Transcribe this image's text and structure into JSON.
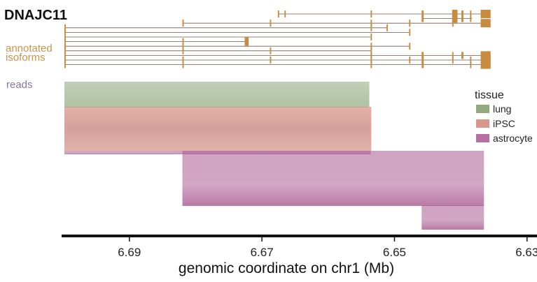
{
  "gene": {
    "name": "DNAJC11"
  },
  "labels": {
    "annotated_line1": "annotated",
    "annotated_line2": "isoforms",
    "reads": "reads"
  },
  "legend": {
    "title": "tissue",
    "items": [
      {
        "label": "lung",
        "color": "#7f9a68"
      },
      {
        "label": "iPSC",
        "color": "#d08578"
      },
      {
        "label": "astrocyte",
        "color": "#a8588f"
      }
    ]
  },
  "colors": {
    "isoform": "#c98b3f",
    "annotated_label": "#c9954e",
    "reads_label": "#8673a8",
    "axis": "#111111"
  },
  "chart_data": {
    "type": "genome-track",
    "title": "DNAJC11",
    "xlabel": "genomic coordinate on chr1 (Mb)",
    "x_reversed": true,
    "xlim": [
      6.6998,
      6.6285
    ],
    "x_ticks": [
      6.69,
      6.67,
      6.65,
      6.63
    ],
    "x_tick_labels": [
      "6.69",
      "6.67",
      "6.65",
      "6.63"
    ],
    "isoforms": [
      {
        "start": 6.6676,
        "end": 6.6355,
        "exons": [
          [
            6.6676,
            6.6674
          ],
          [
            6.6666,
            6.6664
          ],
          [
            6.6536,
            6.6534
          ],
          [
            6.6459,
            6.6456
          ],
          [
            6.6413,
            6.6405
          ],
          [
            6.6399,
            6.6396
          ],
          [
            6.6386,
            6.6384
          ],
          [
            6.637,
            6.6355
          ]
        ]
      },
      {
        "start": 6.6459,
        "end": 6.6383,
        "exons": [
          [
            6.6459,
            6.6456
          ],
          [
            6.6413,
            6.6405
          ],
          [
            6.6399,
            6.6396
          ],
          [
            6.6386,
            6.6384
          ]
        ]
      },
      {
        "start": 6.682,
        "end": 6.6355,
        "exons": [
          [
            6.682,
            6.6818
          ],
          [
            6.6688,
            6.6686
          ],
          [
            6.6536,
            6.6534
          ],
          [
            6.6478,
            6.6476
          ],
          [
            6.6413,
            6.6411
          ],
          [
            6.637,
            6.6355
          ]
        ]
      },
      {
        "start": 6.6998,
        "end": 6.6512,
        "exons": [
          [
            6.6998,
            6.6996
          ],
          [
            6.6536,
            6.6534
          ],
          [
            6.6512,
            6.651
          ]
        ]
      },
      {
        "start": 6.6998,
        "end": 6.6478,
        "exons": [
          [
            6.6998,
            6.6996
          ],
          [
            6.6478,
            6.6476
          ]
        ]
      },
      {
        "start": 6.6998,
        "end": 6.6536,
        "exons": [
          [
            6.6998,
            6.6996
          ],
          [
            6.6536,
            6.6534
          ]
        ]
      },
      {
        "start": 6.6998,
        "end": 6.672,
        "exons": [
          [
            6.6998,
            6.6996
          ],
          [
            6.682,
            6.6818
          ],
          [
            6.6726,
            6.672
          ]
        ]
      },
      {
        "start": 6.6998,
        "end": 6.6478,
        "exons": [
          [
            6.6998,
            6.6996
          ],
          [
            6.682,
            6.6818
          ],
          [
            6.6536,
            6.6534
          ],
          [
            6.6478,
            6.6476
          ]
        ]
      },
      {
        "start": 6.6998,
        "end": 6.6536,
        "exons": [
          [
            6.6998,
            6.6996
          ],
          [
            6.682,
            6.6818
          ],
          [
            6.6688,
            6.6686
          ],
          [
            6.6536,
            6.6534
          ]
        ]
      },
      {
        "start": 6.6998,
        "end": 6.6355,
        "exons": [
          [
            6.6998,
            6.6996
          ],
          [
            6.6536,
            6.6534
          ],
          [
            6.6459,
            6.6456
          ],
          [
            6.6413,
            6.6411
          ],
          [
            6.6399,
            6.6396
          ],
          [
            6.637,
            6.6355
          ]
        ]
      },
      {
        "start": 6.6998,
        "end": 6.6355,
        "exons": [
          [
            6.6998,
            6.6996
          ],
          [
            6.682,
            6.6818
          ],
          [
            6.6688,
            6.6686
          ],
          [
            6.6536,
            6.6534
          ],
          [
            6.6478,
            6.6476
          ],
          [
            6.6459,
            6.6456
          ],
          [
            6.6413,
            6.6411
          ],
          [
            6.6386,
            6.6384
          ],
          [
            6.637,
            6.6355
          ]
        ]
      },
      {
        "start": 6.6998,
        "end": 6.6355,
        "exons": [
          [
            6.6998,
            6.6996
          ],
          [
            6.682,
            6.6818
          ],
          [
            6.6536,
            6.6534
          ],
          [
            6.6459,
            6.6456
          ],
          [
            6.6386,
            6.6384
          ],
          [
            6.637,
            6.6355
          ]
        ]
      }
    ],
    "read_coverage": [
      {
        "tissue": "lung",
        "start": 6.6998,
        "end": 6.6538,
        "depth": 1.0
      },
      {
        "tissue": "iPSC",
        "start": 6.6998,
        "end": 6.6535,
        "depth": 1.0
      },
      {
        "tissue": "astrocyte",
        "start": 6.6998,
        "end": 6.6536,
        "depth": 0.06
      },
      {
        "tissue": "astrocyte",
        "start": 6.682,
        "end": 6.6365,
        "depth": 1.0
      },
      {
        "tissue": "astrocyte",
        "start": 6.6459,
        "end": 6.6365,
        "depth": 0.7
      }
    ]
  }
}
